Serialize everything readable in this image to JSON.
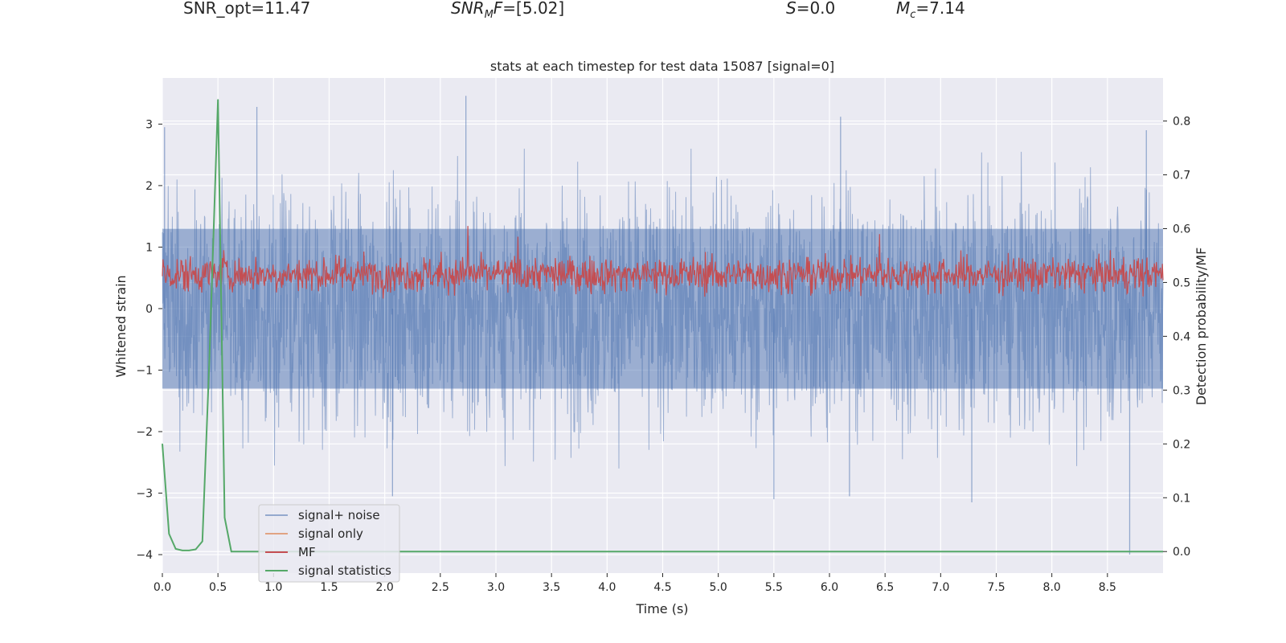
{
  "header": {
    "snr_opt": "SNR_opt=11.47",
    "snr_mf_base": "SNR",
    "snr_mf_sub": "M",
    "snr_mf_tail": "F",
    "snr_mf_value": "=[5.02]",
    "s_symbol": "S",
    "s_value": "=0.0",
    "mc_symbol": "M",
    "mc_sub": "c",
    "mc_value": "=7.14"
  },
  "chart_data": {
    "type": "line",
    "title": "stats at each timestep for test data 15087 [signal=0]",
    "xlabel": "Time (s)",
    "ylabel": "Whitened strain",
    "ylabel_right": "Detection probability/MF",
    "xlim": [
      0,
      9.0
    ],
    "ylim": [
      -4.3,
      3.75
    ],
    "ylim_right": [
      -0.04,
      0.88
    ],
    "x_ticks": [
      0.0,
      0.5,
      1.0,
      1.5,
      2.0,
      2.5,
      3.0,
      3.5,
      4.0,
      4.5,
      5.0,
      5.5,
      6.0,
      6.5,
      7.0,
      7.5,
      8.0,
      8.5
    ],
    "x_tick_labels": [
      "0.0",
      "0.5",
      "1.0",
      "1.5",
      "2.0",
      "2.5",
      "3.0",
      "3.5",
      "4.0",
      "4.5",
      "5.0",
      "5.5",
      "6.0",
      "6.5",
      "7.0",
      "7.5",
      "8.0",
      "8.5"
    ],
    "y_ticks": [
      3,
      2,
      1,
      0,
      -1,
      -2,
      -3,
      -4
    ],
    "y_tick_labels": [
      "3",
      "2",
      "1",
      "0",
      "−1",
      "−2",
      "−3",
      "−4"
    ],
    "y_right_ticks": [
      0.8,
      0.7,
      0.6,
      0.5,
      0.4,
      0.3,
      0.2,
      0.1,
      0.0
    ],
    "y_right_tick_labels": [
      "0.8",
      "0.7",
      "0.6",
      "0.5",
      "0.4",
      "0.3",
      "0.2",
      "0.1",
      "0.0"
    ],
    "series": [
      {
        "name": "signal+ noise",
        "color": "#4c72b0",
        "alpha": 0.5,
        "description": "dense whitened noise, roughly within -2.5..2.5 with spikes to about 3.4 and -4.0",
        "noise_band": [
          -1.3,
          1.3
        ],
        "noise_band_inner": [
          -1.0,
          1.0
        ],
        "spike_highs": [
          [
            0.02,
            2.95
          ],
          [
            0.85,
            3.28
          ],
          [
            2.73,
            3.46
          ],
          [
            6.1,
            3.12
          ],
          [
            8.85,
            2.9
          ]
        ],
        "spike_lows": [
          [
            2.07,
            -3.05
          ],
          [
            5.5,
            -3.1
          ],
          [
            6.18,
            -3.05
          ],
          [
            7.28,
            -3.15
          ],
          [
            8.7,
            -4.0
          ]
        ]
      },
      {
        "name": "signal only",
        "color": "#dd8452",
        "values": []
      },
      {
        "name": "MF",
        "color": "#c44e52",
        "axis": "right",
        "description": "matched-filter output fluctuating about 0.5-0.55",
        "band": [
          0.485,
          0.545
        ],
        "peaks": [
          [
            0.55,
            0.56
          ],
          [
            2.75,
            0.605
          ],
          [
            3.2,
            0.585
          ],
          [
            6.45,
            0.59
          ]
        ]
      },
      {
        "name": "signal statistics",
        "color": "#55a868",
        "axis": "right",
        "x": [
          0.0,
          0.06,
          0.12,
          0.18,
          0.24,
          0.3,
          0.36,
          0.42,
          0.5,
          0.56,
          0.62,
          0.7,
          1.0,
          2.0,
          3.0,
          4.0,
          5.0,
          6.0,
          7.0,
          8.0,
          9.0
        ],
        "y": [
          0.2,
          0.033,
          0.005,
          0.002,
          0.002,
          0.004,
          0.019,
          0.34,
          0.84,
          0.063,
          0.0,
          0.0,
          0.0,
          0.0,
          0.0,
          0.0,
          0.0,
          0.0,
          0.0,
          0.0,
          0.0
        ]
      }
    ],
    "legend": {
      "position": "lower-left",
      "entries": [
        "signal+ noise",
        "signal only",
        "MF",
        "signal statistics"
      ]
    },
    "grid": true
  }
}
